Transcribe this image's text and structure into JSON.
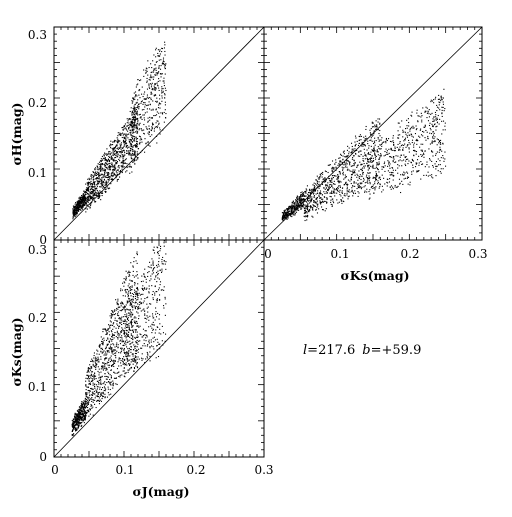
{
  "chart_data": [
    {
      "id": "top-left",
      "type": "scatter",
      "xlabel": "",
      "ylabel": "σH(mag)",
      "xlim": [
        0,
        0.3
      ],
      "ylim": [
        0,
        0.3
      ],
      "x_tick_labels": [],
      "y_tick_labels": [
        "0",
        "0.1",
        "0.2",
        "0.3"
      ],
      "reference_line": "y = x",
      "dot_color": "#000000",
      "n_points": 1700,
      "seed": 11,
      "point_clusters": [
        {
          "share": 0.2,
          "x_range": [
            0.027,
            0.045
          ],
          "slope_low": 1.0,
          "slope_high": 1.35,
          "offset": [
            0.002,
            0.012
          ]
        },
        {
          "share": 0.55,
          "x_range": [
            0.045,
            0.12
          ],
          "slope_low": 0.9,
          "slope_high": 1.6,
          "offset": [
            -0.005,
            0.01
          ]
        },
        {
          "share": 0.25,
          "x_range": [
            0.11,
            0.16
          ],
          "slope_low": 0.95,
          "slope_high": 1.75,
          "offset": [
            -0.005,
            0.02
          ]
        }
      ]
    },
    {
      "id": "top-right",
      "type": "scatter",
      "xlabel": "σKs(mag)",
      "ylabel": "",
      "xlim": [
        0,
        0.3
      ],
      "ylim": [
        0,
        0.3
      ],
      "x_tick_labels": [
        "0",
        "0.1",
        "0.2",
        "0.3"
      ],
      "y_tick_labels": [],
      "reference_line": "y = x",
      "dot_color": "#000000",
      "n_points": 1700,
      "seed": 23,
      "point_clusters": [
        {
          "share": 0.18,
          "x_range": [
            0.025,
            0.055
          ],
          "slope_low": 0.7,
          "slope_high": 1.1,
          "offset": [
            0.005,
            0.012
          ]
        },
        {
          "share": 0.47,
          "x_range": [
            0.055,
            0.16
          ],
          "slope_low": 0.45,
          "slope_high": 1.05,
          "offset": [
            0.0,
            0.015
          ]
        },
        {
          "share": 0.35,
          "x_range": [
            0.14,
            0.25
          ],
          "slope_low": 0.35,
          "slope_high": 0.8,
          "offset": [
            0.0,
            0.02
          ]
        }
      ]
    },
    {
      "id": "bottom-left",
      "type": "scatter",
      "xlabel": "σJ(mag)",
      "ylabel": "σKs(mag)",
      "xlim": [
        0,
        0.3
      ],
      "ylim": [
        0,
        0.3
      ],
      "x_tick_labels": [
        "0",
        "0.1",
        "0.2",
        "0.3"
      ],
      "y_tick_labels": [
        "0",
        "0.1",
        "0.2",
        "0.3"
      ],
      "reference_line": "y = x",
      "dot_color": "#000000",
      "n_points": 1700,
      "seed": 37,
      "point_clusters": [
        {
          "share": 0.22,
          "x_range": [
            0.026,
            0.045
          ],
          "slope_low": 1.05,
          "slope_high": 1.7,
          "offset": [
            0.0,
            0.01
          ]
        },
        {
          "share": 0.53,
          "x_range": [
            0.045,
            0.12
          ],
          "slope_low": 1.1,
          "slope_high": 2.4,
          "offset": [
            -0.005,
            0.01
          ]
        },
        {
          "share": 0.25,
          "x_range": [
            0.1,
            0.16
          ],
          "slope_low": 0.95,
          "slope_high": 2.0,
          "offset": [
            -0.005,
            0.01
          ]
        }
      ]
    }
  ],
  "annotation": {
    "l_symbol": "l",
    "l_value": "=217.6",
    "b_symbol": "b",
    "b_value": "=+59.9"
  }
}
